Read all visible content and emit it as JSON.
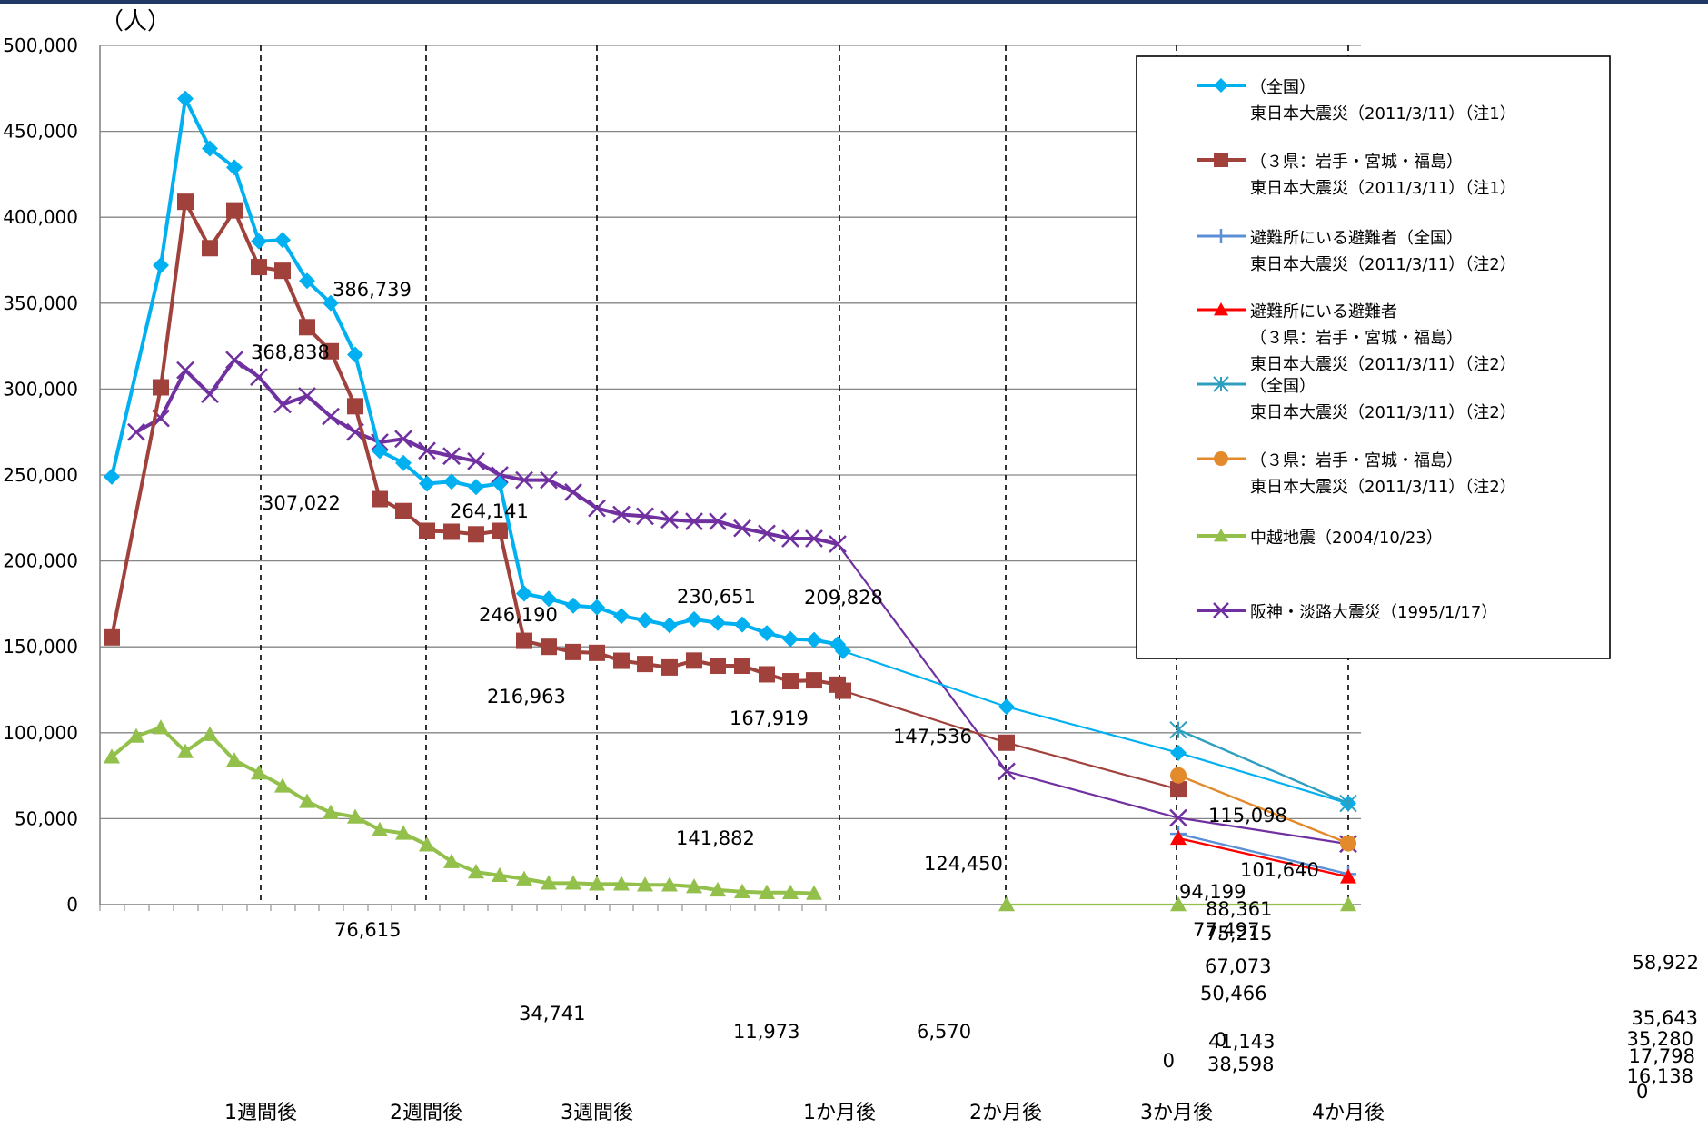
{
  "chart_data": {
    "type": "line",
    "unit_label": "（人）",
    "ylim": [
      0,
      500000
    ],
    "y_ticks": [
      "500,000",
      "450,000",
      "400,000",
      "350,000",
      "300,000",
      "250,000",
      "200,000",
      "150,000",
      "100,000",
      "50,000",
      "0"
    ],
    "x_milestones": [
      "1週間後",
      "2週間後",
      "3週間後",
      "1か月後",
      "2か月後",
      "3か月後",
      "4か月後"
    ],
    "x_note": "x values are days elapsed since each disaster",
    "series": [
      {
        "legend": [
          "（全国）",
          "東日本大震災（2011/3/11）（注1）"
        ],
        "color": "#00b0f0",
        "marker": "diamond",
        "width": 4,
        "points": [
          [
            1,
            249000
          ],
          [
            3,
            372000
          ],
          [
            4,
            469000
          ],
          [
            5,
            440000
          ],
          [
            6,
            429000
          ],
          [
            7,
            386000
          ],
          [
            8,
            386739
          ],
          [
            9,
            363000
          ],
          [
            10,
            350000
          ],
          [
            11,
            320000
          ],
          [
            12,
            264000
          ],
          [
            13,
            257000
          ],
          [
            14,
            245000
          ],
          [
            15,
            246190
          ],
          [
            16,
            243000
          ],
          [
            17,
            245000
          ],
          [
            18,
            181000
          ],
          [
            19,
            178000
          ],
          [
            20,
            174000
          ],
          [
            21,
            173000
          ],
          [
            22,
            167919
          ],
          [
            23,
            165500
          ],
          [
            24,
            162500
          ],
          [
            25,
            166000
          ],
          [
            26,
            164000
          ],
          [
            27,
            163000
          ],
          [
            28,
            158000
          ],
          [
            29,
            154500
          ],
          [
            30,
            154000
          ],
          [
            31,
            151500
          ],
          [
            32,
            147536
          ],
          [
            62,
            115098
          ],
          [
            92,
            88361
          ],
          [
            122,
            58922
          ]
        ]
      },
      {
        "legend": [
          "（３県：岩手・宮城・福島）",
          "東日本大震災（2011/3/11）（注1）"
        ],
        "color": "#a0413c",
        "marker": "square",
        "width": 4,
        "points": [
          [
            1,
            155500
          ],
          [
            3,
            301000
          ],
          [
            4,
            409000
          ],
          [
            5,
            382000
          ],
          [
            6,
            404000
          ],
          [
            7,
            371000
          ],
          [
            8,
            368838
          ],
          [
            9,
            336000
          ],
          [
            10,
            322000
          ],
          [
            11,
            290000
          ],
          [
            12,
            236000
          ],
          [
            13,
            229000
          ],
          [
            14,
            217500
          ],
          [
            15,
            216963
          ],
          [
            16,
            215500
          ],
          [
            17,
            217500
          ],
          [
            18,
            153500
          ],
          [
            19,
            150000
          ],
          [
            20,
            147000
          ],
          [
            21,
            146500
          ],
          [
            22,
            141882
          ],
          [
            23,
            140000
          ],
          [
            24,
            138000
          ],
          [
            25,
            142000
          ],
          [
            26,
            139000
          ],
          [
            27,
            139000
          ],
          [
            28,
            134000
          ],
          [
            29,
            130000
          ],
          [
            30,
            130500
          ],
          [
            31,
            128000
          ],
          [
            32,
            124450
          ],
          [
            62,
            94199
          ],
          [
            92,
            67073
          ]
        ]
      },
      {
        "legend": [
          "避難所にいる避難者（全国）",
          "東日本大震災（2011/3/11）（注2）"
        ],
        "color": "#5b8fd6",
        "marker": "plus",
        "width": 3,
        "points": [
          [
            92,
            41143
          ],
          [
            122,
            17798
          ]
        ]
      },
      {
        "legend": [
          "避難所にいる避難者",
          "（３県：岩手・宮城・福島）",
          "東日本大震災（2011/3/11）（注2）"
        ],
        "color": "#ff0000",
        "marker": "triangle",
        "width": 3,
        "points": [
          [
            92,
            38598
          ],
          [
            122,
            16138
          ]
        ]
      },
      {
        "legend": [
          "（全国）",
          "東日本大震災（2011/3/11）（注2）"
        ],
        "color": "#2e9fbf",
        "marker": "star",
        "width": 3,
        "points": [
          [
            92,
            101640
          ],
          [
            122,
            58922
          ]
        ]
      },
      {
        "legend": [
          "（３県：岩手・宮城・福島）",
          "東日本大震災（2011/3/11）（注2）"
        ],
        "color": "#e38b2c",
        "marker": "circle",
        "width": 3,
        "points": [
          [
            92,
            75215
          ],
          [
            122,
            35643
          ]
        ]
      },
      {
        "legend": [
          "中越地震（2004/10/23）"
        ],
        "color": "#92c04b",
        "marker": "triangle",
        "width": 4,
        "points": [
          [
            1,
            86000
          ],
          [
            2,
            98000
          ],
          [
            3,
            103000
          ],
          [
            4,
            89000
          ],
          [
            5,
            99000
          ],
          [
            6,
            84000
          ],
          [
            7,
            76615
          ],
          [
            8,
            69000
          ],
          [
            9,
            60000
          ],
          [
            10,
            53500
          ],
          [
            11,
            51000
          ],
          [
            12,
            43500
          ],
          [
            13,
            41500
          ],
          [
            14,
            34741
          ],
          [
            15,
            25000
          ],
          [
            16,
            19000
          ],
          [
            17,
            17000
          ],
          [
            18,
            15000
          ],
          [
            19,
            12500
          ],
          [
            20,
            12500
          ],
          [
            21,
            11973
          ],
          [
            22,
            12000
          ],
          [
            23,
            11500
          ],
          [
            24,
            11500
          ],
          [
            25,
            10500
          ],
          [
            26,
            8500
          ],
          [
            27,
            7500
          ],
          [
            28,
            7000
          ],
          [
            29,
            7000
          ],
          [
            30,
            6570
          ],
          [
            62,
            0
          ],
          [
            92,
            0
          ],
          [
            122,
            0
          ]
        ]
      },
      {
        "legend": [
          "阪神・淡路大震災（1995/1/17）"
        ],
        "color": "#7030a0",
        "marker": "x",
        "width": 4,
        "points": [
          [
            2,
            275000
          ],
          [
            3,
            283000
          ],
          [
            4,
            311000
          ],
          [
            5,
            297000
          ],
          [
            6,
            317000
          ],
          [
            7,
            307022
          ],
          [
            8,
            291000
          ],
          [
            9,
            296000
          ],
          [
            10,
            284000
          ],
          [
            11,
            275000
          ],
          [
            12,
            269000
          ],
          [
            13,
            271000
          ],
          [
            14,
            264141
          ],
          [
            15,
            261000
          ],
          [
            16,
            258000
          ],
          [
            17,
            250000
          ],
          [
            18,
            247000
          ],
          [
            19,
            247000
          ],
          [
            20,
            240000
          ],
          [
            21,
            230651
          ],
          [
            22,
            227000
          ],
          [
            23,
            226000
          ],
          [
            24,
            224000
          ],
          [
            25,
            223000
          ],
          [
            26,
            223000
          ],
          [
            27,
            219000
          ],
          [
            28,
            216000
          ],
          [
            29,
            213000
          ],
          [
            30,
            213000
          ],
          [
            31,
            209828
          ],
          [
            62,
            77497
          ],
          [
            92,
            50466
          ],
          [
            122,
            35280
          ]
        ]
      }
    ],
    "data_labels": [
      "386,739",
      "368,838",
      "307,022",
      "264,141",
      "246,190",
      "216,963",
      "230,651",
      "209,828",
      "167,919",
      "147,536",
      "141,882",
      "124,450",
      "115,098",
      "94,199",
      "77,497",
      "101,640",
      "88,361",
      "75,215",
      "67,073",
      "50,466",
      "41,143",
      "38,598",
      "0",
      "0",
      "58,922",
      "35,643",
      "35,280",
      "17,798",
      "16,138",
      "0",
      "76,615",
      "34,741",
      "11,973",
      "6,570"
    ]
  }
}
